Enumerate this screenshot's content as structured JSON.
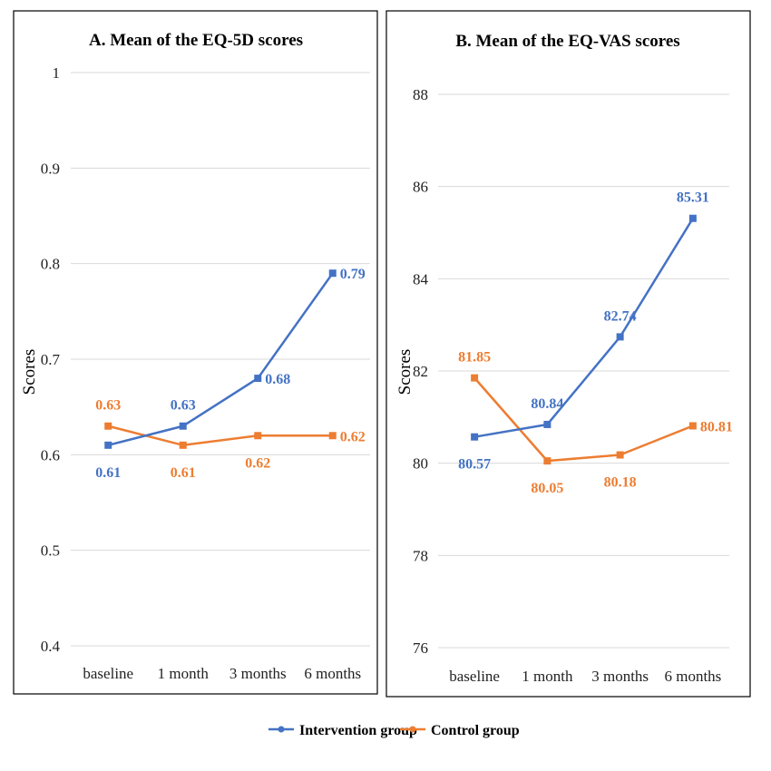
{
  "colors": {
    "intervention": "#4472C4",
    "control": "#ED7D31",
    "grid": "#d9d9d9",
    "frame": "#000000"
  },
  "chart_data": [
    {
      "type": "line",
      "title": "A. Mean of the EQ-5D scores",
      "ylabel": "Scores",
      "categories": [
        "baseline",
        "1 month",
        "3 months",
        "6 months"
      ],
      "ylim": [
        0.4,
        1
      ],
      "yticks": [
        "0.4",
        "0.5",
        "0.6",
        "0.7",
        "0.8",
        "0.9",
        "1"
      ],
      "grid": true,
      "series": [
        {
          "name": "Intervention group",
          "values": [
            0.61,
            0.63,
            0.68,
            0.79
          ],
          "labels": [
            "0.61",
            "0.63",
            "0.68",
            "0.79"
          ]
        },
        {
          "name": "Control group",
          "values": [
            0.63,
            0.61,
            0.62,
            0.62
          ],
          "labels": [
            "0.63",
            "0.61",
            "0.62",
            "0.62"
          ]
        }
      ]
    },
    {
      "type": "line",
      "title": "B. Mean of the EQ-VAS scores",
      "ylabel": "Scores",
      "categories": [
        "baseline",
        "1 month",
        "3 months",
        "6 months"
      ],
      "ylim": [
        76,
        88
      ],
      "yticks": [
        "76",
        "78",
        "80",
        "82",
        "84",
        "86",
        "88"
      ],
      "grid": true,
      "series": [
        {
          "name": "Intervention group",
          "values": [
            80.57,
            80.84,
            82.74,
            85.31
          ],
          "labels": [
            "80.57",
            "80.84",
            "82.74",
            "85.31"
          ]
        },
        {
          "name": "Control group",
          "values": [
            81.85,
            80.05,
            80.18,
            80.81
          ],
          "labels": [
            "81.85",
            "80.05",
            "80.18",
            "80.81"
          ]
        }
      ]
    }
  ],
  "legend": {
    "position": "bottom",
    "items": [
      "Intervention group",
      "Control group"
    ]
  }
}
